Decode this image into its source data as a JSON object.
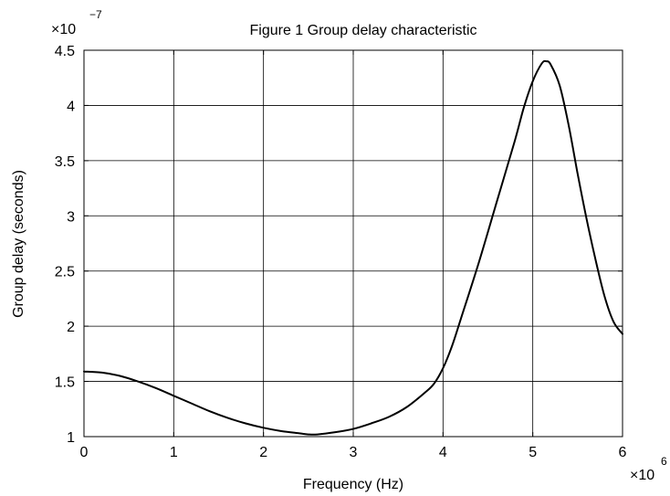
{
  "chart_data": {
    "type": "line",
    "title": "Figure 1  Group delay characteristic",
    "xlabel": "Frequency (Hz)",
    "ylabel": "Group delay (seconds)",
    "x_exponent_base": "×10",
    "x_exponent_power": "6",
    "y_exponent_base": "×10",
    "y_exponent_power": "−7",
    "xlim": [
      0,
      6
    ],
    "ylim": [
      1,
      4.5
    ],
    "x_ticks": [
      0,
      1,
      2,
      3,
      4,
      5,
      6
    ],
    "y_ticks": [
      1,
      1.5,
      2,
      2.5,
      3,
      3.5,
      4,
      4.5
    ],
    "x_tick_labels": [
      "0",
      "1",
      "2",
      "3",
      "4",
      "5",
      "6"
    ],
    "y_tick_labels": [
      "1",
      "1.5",
      "2",
      "2.5",
      "3",
      "3.5",
      "4",
      "4.5"
    ],
    "grid": true,
    "line_color": "#000000",
    "series": [
      {
        "x": [
          0,
          0.2,
          0.4,
          0.6,
          0.8,
          1.0,
          1.2,
          1.4,
          1.6,
          1.8,
          2.0,
          2.2,
          2.4,
          2.5,
          2.6,
          2.8,
          3.0,
          3.2,
          3.4,
          3.6,
          3.8,
          3.9,
          4.0,
          4.1,
          4.2,
          4.4,
          4.6,
          4.8,
          4.9,
          5.0,
          5.1,
          5.15,
          5.2,
          5.3,
          5.4,
          5.5,
          5.6,
          5.7,
          5.8,
          5.9,
          6.0
        ],
        "y": [
          1.59,
          1.58,
          1.55,
          1.5,
          1.44,
          1.37,
          1.3,
          1.23,
          1.17,
          1.12,
          1.08,
          1.05,
          1.03,
          1.02,
          1.02,
          1.04,
          1.07,
          1.12,
          1.18,
          1.27,
          1.4,
          1.48,
          1.62,
          1.82,
          2.07,
          2.58,
          3.13,
          3.68,
          3.98,
          4.22,
          4.38,
          4.4,
          4.37,
          4.18,
          3.82,
          3.38,
          2.97,
          2.6,
          2.27,
          2.04,
          1.93
        ]
      }
    ]
  }
}
